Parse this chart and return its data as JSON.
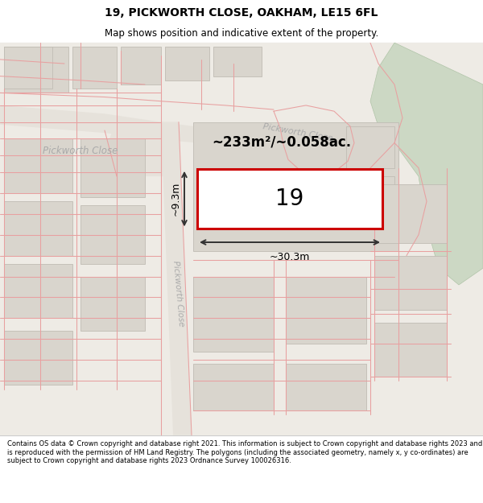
{
  "title_line1": "19, PICKWORTH CLOSE, OAKHAM, LE15 6FL",
  "title_line2": "Map shows position and indicative extent of the property.",
  "footer_text": "Contains OS data © Crown copyright and database right 2021. This information is subject to Crown copyright and database rights 2023 and is reproduced with the permission of HM Land Registry. The polygons (including the associated geometry, namely x, y co-ordinates) are subject to Crown copyright and database rights 2023 Ordnance Survey 100026316.",
  "property_number": "19",
  "area_label": "~233m²/~0.058ac.",
  "width_label": "~30.3m",
  "height_label": "~9.3m",
  "map_bg": "#eeebe5",
  "road_bg": "#e2ddd6",
  "building_fill": "#d9d5cd",
  "building_edge": "#c0bcb4",
  "highlight_color": "#cc0000",
  "red_line_color": "#e8a0a0",
  "road_label_color": "#aaaaaa",
  "green_fill": "#ccd8c4",
  "green_edge": "#b0c4a8",
  "title_fontsize": 10,
  "subtitle_fontsize": 8.5,
  "footer_fontsize": 6.0
}
